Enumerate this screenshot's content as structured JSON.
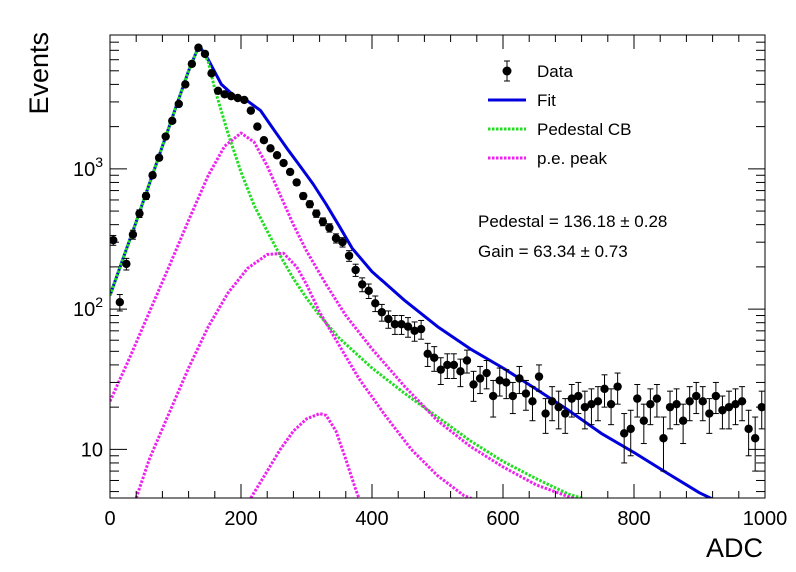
{
  "chart_data": {
    "type": "scatter",
    "title": "",
    "xlabel": "ADC",
    "ylabel": "Events",
    "xlim": [
      0,
      1000
    ],
    "ylim": [
      4.5,
      9000
    ],
    "y_scale": "log",
    "grid": false,
    "legend_position": "top-right",
    "x_tick_labels": [
      "0",
      "200",
      "400",
      "600",
      "800",
      "1000"
    ],
    "x_ticks": [
      0,
      200,
      400,
      600,
      800,
      1000
    ],
    "y_tick_labels": [
      {
        "value": 10,
        "base": "10",
        "exp": ""
      },
      {
        "value": 100,
        "base": "10",
        "exp": "2"
      },
      {
        "value": 1000,
        "base": "10",
        "exp": "3"
      }
    ],
    "legend": [
      {
        "label": "Data",
        "style": "marker",
        "color": "#000000"
      },
      {
        "label": "Fit",
        "style": "solid",
        "color": "#0000dd"
      },
      {
        "label": "Pedestal CB",
        "style": "dotted",
        "color": "#22dd22"
      },
      {
        "label": "p.e. peak",
        "style": "dotted",
        "color": "#ee22ee"
      }
    ],
    "annotations": [
      "Pedestal = 136.18 ± 0.28",
      "Gain = 63.34 ± 0.73"
    ],
    "series": [
      {
        "name": "Data",
        "kind": "points",
        "color": "#000000",
        "x": [
          5,
          15,
          25,
          35,
          45,
          55,
          65,
          75,
          85,
          95,
          105,
          115,
          125,
          135,
          145,
          155,
          165,
          175,
          185,
          195,
          205,
          215,
          225,
          235,
          245,
          255,
          265,
          275,
          285,
          295,
          305,
          315,
          325,
          335,
          345,
          355,
          365,
          375,
          385,
          395,
          405,
          415,
          425,
          435,
          445,
          455,
          465,
          475,
          485,
          495,
          505,
          515,
          525,
          535,
          545,
          555,
          565,
          575,
          585,
          595,
          605,
          615,
          625,
          635,
          645,
          655,
          665,
          675,
          685,
          695,
          705,
          715,
          725,
          735,
          745,
          755,
          765,
          775,
          785,
          795,
          805,
          815,
          825,
          835,
          845,
          855,
          865,
          875,
          885,
          895,
          905,
          915,
          925,
          935,
          945,
          955,
          965,
          975,
          985,
          995
        ],
        "y": [
          310,
          112,
          210,
          340,
          480,
          640,
          900,
          1200,
          1700,
          2200,
          2900,
          4000,
          5600,
          7300,
          6600,
          4800,
          3600,
          3400,
          3300,
          3200,
          3100,
          2600,
          2000,
          1600,
          1400,
          1250,
          1100,
          950,
          800,
          640,
          560,
          480,
          420,
          380,
          320,
          300,
          240,
          190,
          150,
          135,
          110,
          95,
          85,
          78,
          78,
          75,
          70,
          72,
          48,
          45,
          37,
          40,
          40,
          36,
          43,
          29,
          32,
          35,
          24,
          31,
          30,
          24,
          32,
          25,
          22,
          33,
          18,
          22,
          20,
          18,
          23,
          24,
          20,
          21,
          22,
          27,
          21,
          28,
          13,
          14,
          23,
          16,
          21,
          23,
          12,
          20,
          21,
          16,
          22,
          24,
          22,
          18,
          24,
          19,
          20,
          21,
          22,
          14,
          12,
          20
        ],
        "err": [
          25,
          15,
          20,
          25,
          30,
          35,
          40,
          45,
          55,
          60,
          70,
          85,
          100,
          115,
          110,
          95,
          80,
          80,
          80,
          80,
          75,
          70,
          60,
          55,
          50,
          48,
          45,
          42,
          38,
          33,
          31,
          29,
          27,
          26,
          24,
          23,
          21,
          19,
          17,
          16,
          14,
          13,
          12,
          12,
          12,
          12,
          11,
          11,
          9,
          9,
          8,
          8,
          8,
          8,
          8,
          7,
          7,
          8,
          7,
          7,
          7,
          6,
          7,
          6,
          6,
          7,
          5,
          6,
          6,
          5,
          6,
          6,
          6,
          6,
          6,
          7,
          6,
          7,
          5,
          5,
          6,
          5,
          6,
          6,
          5,
          6,
          6,
          5,
          6,
          6,
          6,
          5,
          6,
          5,
          6,
          6,
          6,
          5,
          5,
          6
        ]
      },
      {
        "name": "Fit",
        "kind": "line",
        "style": "solid",
        "color": "#0000dd",
        "x": [
          0,
          20,
          40,
          60,
          80,
          100,
          120,
          136,
          150,
          170,
          190,
          210,
          230,
          250,
          270,
          290,
          310,
          330,
          350,
          370,
          400,
          450,
          500,
          550,
          600,
          650,
          700,
          750,
          800,
          850,
          900,
          930
        ],
        "y": [
          125,
          230,
          420,
          780,
          1450,
          2700,
          5000,
          7600,
          6000,
          4000,
          3300,
          3050,
          2600,
          1900,
          1400,
          1050,
          780,
          560,
          390,
          270,
          185,
          115,
          75,
          52,
          38,
          27,
          19,
          13,
          9.5,
          6.8,
          4.9,
          4.2
        ]
      },
      {
        "name": "Pedestal CB",
        "kind": "line",
        "style": "dotted",
        "color": "#22dd22",
        "x": [
          0,
          20,
          40,
          60,
          80,
          100,
          120,
          136,
          150,
          160,
          180,
          200,
          220,
          240,
          260,
          280,
          300,
          320,
          350,
          400,
          450,
          500,
          550,
          600,
          650,
          700,
          740
        ],
        "y": [
          125,
          230,
          420,
          780,
          1450,
          2700,
          5000,
          7600,
          5800,
          3700,
          1800,
          950,
          550,
          360,
          240,
          165,
          120,
          90,
          62,
          38,
          25,
          17,
          11.5,
          8.2,
          6.2,
          4.8,
          4.2
        ]
      },
      {
        "name": "p.e. peak 1",
        "kind": "line",
        "style": "dotted",
        "color": "#ee22ee",
        "x": [
          0,
          30,
          60,
          90,
          120,
          150,
          175,
          200,
          220,
          240,
          260,
          280,
          300,
          330,
          360,
          400,
          450,
          500,
          550,
          600,
          650,
          700,
          720
        ],
        "y": [
          22,
          45,
          95,
          200,
          430,
          900,
          1450,
          1800,
          1550,
          1050,
          650,
          400,
          260,
          150,
          90,
          52,
          28,
          16,
          10.5,
          7.5,
          5.6,
          4.6,
          4.3
        ]
      },
      {
        "name": "p.e. peak 2",
        "kind": "line",
        "style": "dotted",
        "color": "#ee22ee",
        "x": [
          40,
          60,
          90,
          120,
          150,
          180,
          210,
          240,
          265,
          285,
          300,
          320,
          350,
          380,
          420,
          460,
          500,
          540,
          555
        ],
        "y": [
          4.5,
          8.5,
          18,
          38,
          75,
          130,
          195,
          245,
          250,
          200,
          150,
          95,
          55,
          32,
          17.5,
          10,
          6.5,
          4.7,
          4.4
        ]
      },
      {
        "name": "p.e. peak 3",
        "kind": "line",
        "style": "dotted",
        "color": "#ee22ee",
        "x": [
          215,
          240,
          260,
          280,
          300,
          320,
          330,
          345,
          360,
          375,
          380
        ],
        "y": [
          4.5,
          7,
          10,
          13.5,
          16.5,
          18,
          17.5,
          13.5,
          8.5,
          5.2,
          4.5
        ]
      }
    ]
  }
}
